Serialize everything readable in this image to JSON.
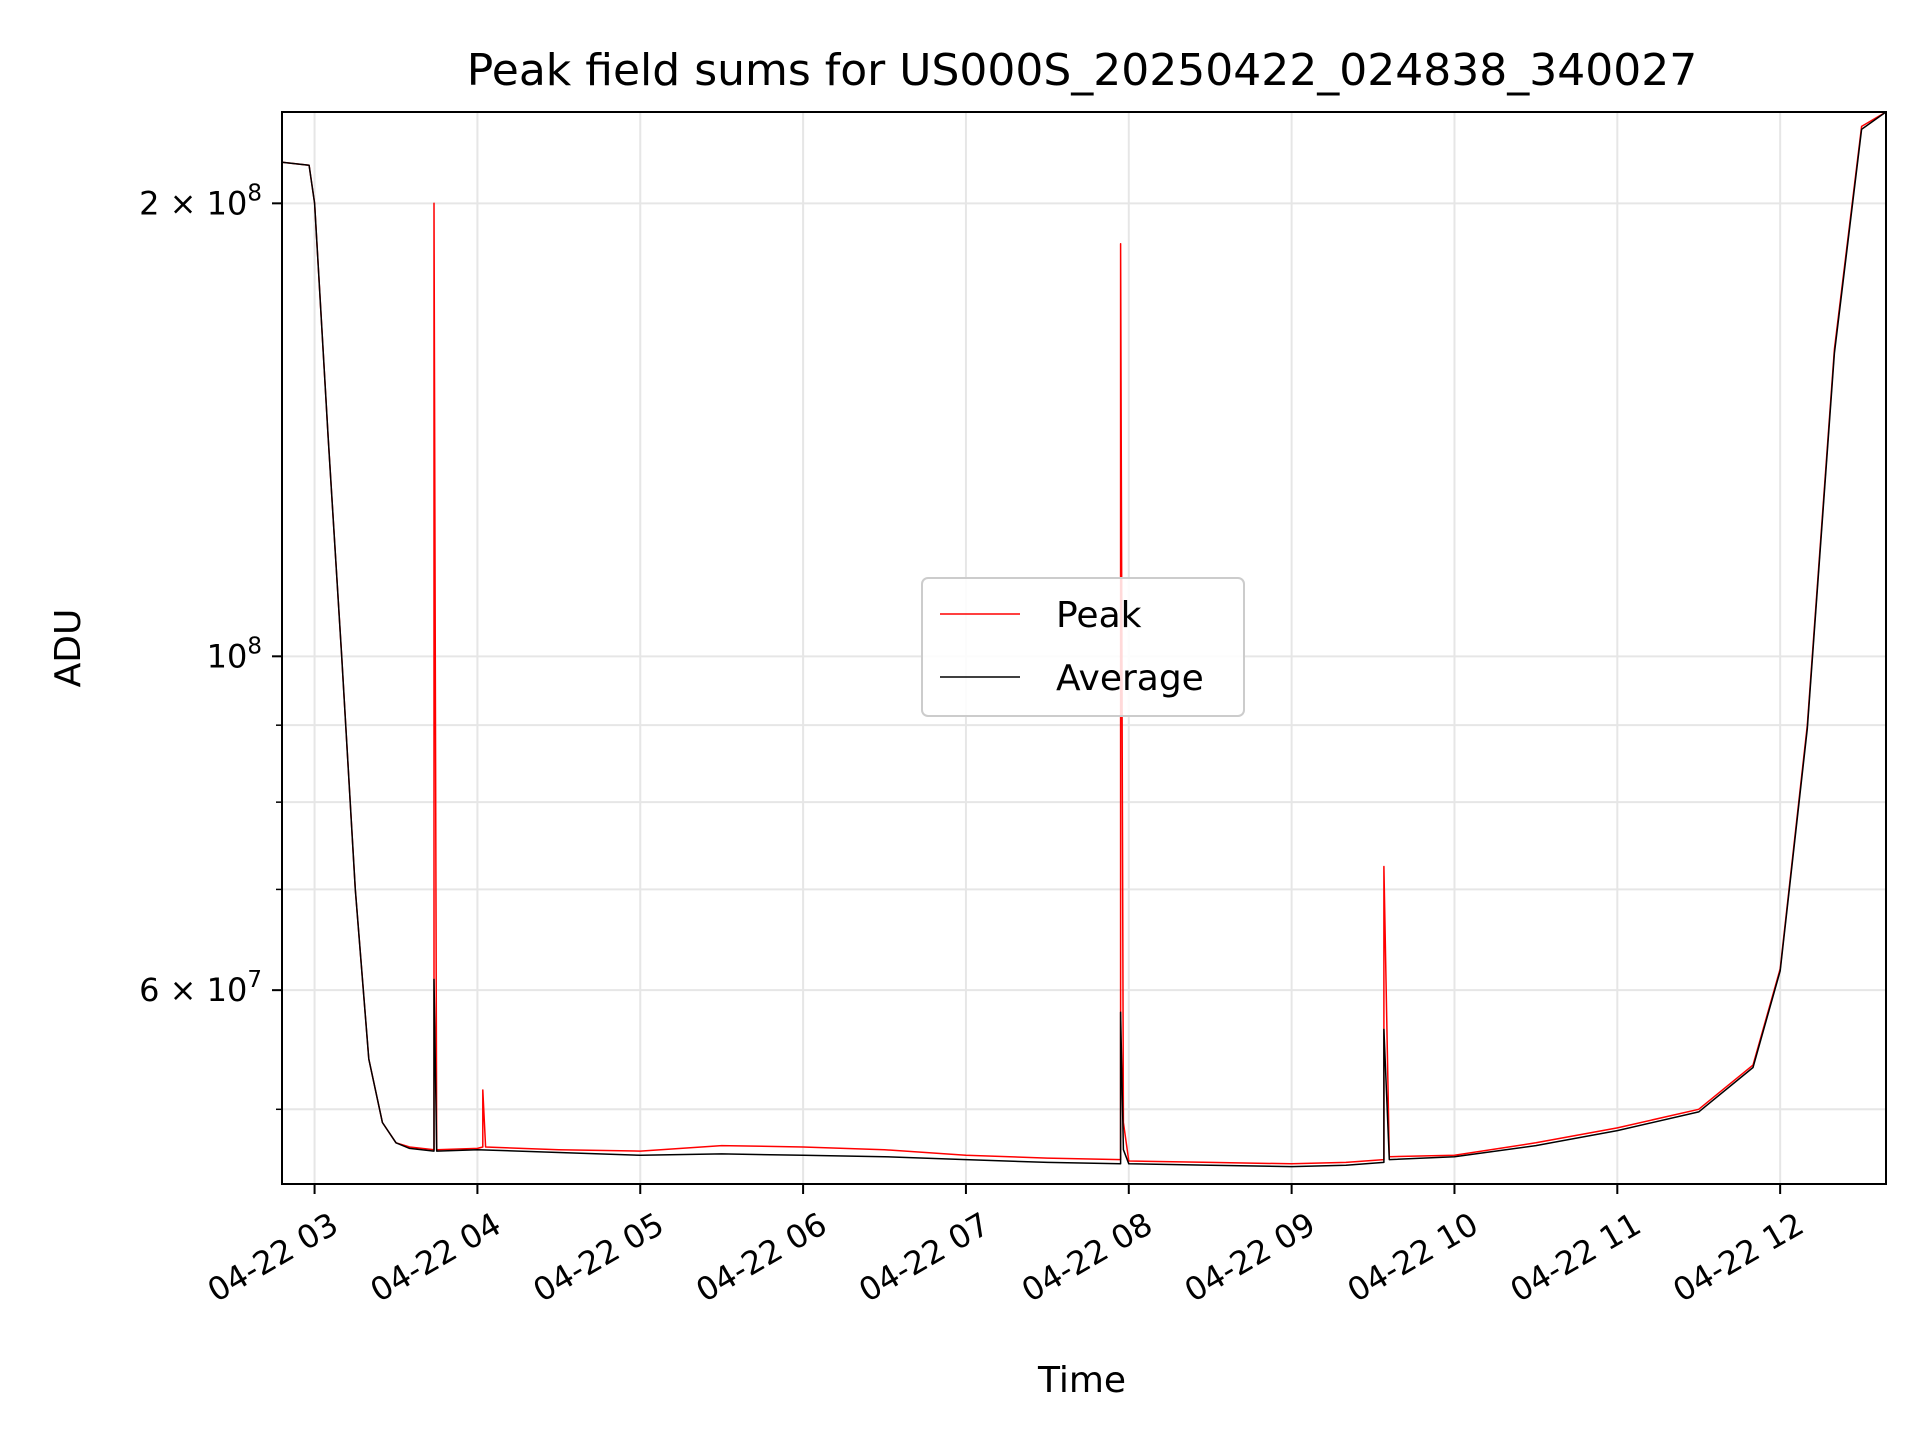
{
  "chart_data": {
    "type": "line",
    "title": "Peak field sums for US000S_20250422_024838_340027",
    "xlabel": "Time",
    "ylabel": "ADU",
    "y_scale": "log",
    "xlim": [
      "2025-04-22 02:48",
      "2025-04-22 12:39"
    ],
    "ylim": [
      44600000,
      230000000
    ],
    "grid": true,
    "legend_placement": "center",
    "x_ticks": [
      {
        "x": "2025-04-22 03:00",
        "label": "04-22 03"
      },
      {
        "x": "2025-04-22 04:00",
        "label": "04-22 04"
      },
      {
        "x": "2025-04-22 05:00",
        "label": "04-22 05"
      },
      {
        "x": "2025-04-22 06:00",
        "label": "04-22 06"
      },
      {
        "x": "2025-04-22 07:00",
        "label": "04-22 07"
      },
      {
        "x": "2025-04-22 08:00",
        "label": "04-22 08"
      },
      {
        "x": "2025-04-22 09:00",
        "label": "04-22 09"
      },
      {
        "x": "2025-04-22 10:00",
        "label": "04-22 10"
      },
      {
        "x": "2025-04-22 11:00",
        "label": "04-22 11"
      },
      {
        "x": "2025-04-22 12:00",
        "label": "04-22 12"
      }
    ],
    "y_ticks": [
      {
        "value": 200000000,
        "base": "2 × 10",
        "exp": "8"
      },
      {
        "value": 100000000,
        "base": "10",
        "exp": "8"
      },
      {
        "value": 60000000,
        "base": "6 × 10",
        "exp": "7"
      }
    ],
    "y_minor_ticks": [
      50000000,
      70000000,
      80000000,
      90000000
    ],
    "series": [
      {
        "name": "Peak",
        "color": "#ff0000",
        "points": [
          [
            "2025-04-22 02:48",
            213000000
          ],
          [
            "2025-04-22 02:58",
            212000000
          ],
          [
            "2025-04-22 03:00",
            200000000
          ],
          [
            "2025-04-22 03:05",
            140000000
          ],
          [
            "2025-04-22 03:10",
            100000000
          ],
          [
            "2025-04-22 03:15",
            70000000
          ],
          [
            "2025-04-22 03:20",
            54000000
          ],
          [
            "2025-04-22 03:25",
            49000000
          ],
          [
            "2025-04-22 03:30",
            47500000
          ],
          [
            "2025-04-22 03:35",
            47200000
          ],
          [
            "2025-04-22 03:44",
            47000000
          ],
          [
            "2025-04-22 03:44",
            200000000
          ],
          [
            "2025-04-22 03:45",
            47000000
          ],
          [
            "2025-04-22 04:00",
            47100000
          ],
          [
            "2025-04-22 04:02",
            47200000
          ],
          [
            "2025-04-22 04:02",
            51500000
          ],
          [
            "2025-04-22 04:03",
            47200000
          ],
          [
            "2025-04-22 04:30",
            47000000
          ],
          [
            "2025-04-22 05:00",
            46900000
          ],
          [
            "2025-04-22 05:30",
            47300000
          ],
          [
            "2025-04-22 06:00",
            47200000
          ],
          [
            "2025-04-22 06:30",
            47000000
          ],
          [
            "2025-04-22 07:00",
            46600000
          ],
          [
            "2025-04-22 07:30",
            46400000
          ],
          [
            "2025-04-22 07:57",
            46300000
          ],
          [
            "2025-04-22 07:57",
            188000000
          ],
          [
            "2025-04-22 07:58",
            49000000
          ],
          [
            "2025-04-22 08:00",
            46200000
          ],
          [
            "2025-04-22 08:30",
            46100000
          ],
          [
            "2025-04-22 09:00",
            46000000
          ],
          [
            "2025-04-22 09:20",
            46100000
          ],
          [
            "2025-04-22 09:34",
            46300000
          ],
          [
            "2025-04-22 09:34",
            72500000
          ],
          [
            "2025-04-22 09:36",
            46500000
          ],
          [
            "2025-04-22 10:00",
            46600000
          ],
          [
            "2025-04-22 10:30",
            47500000
          ],
          [
            "2025-04-22 11:00",
            48600000
          ],
          [
            "2025-04-22 11:30",
            50000000
          ],
          [
            "2025-04-22 11:50",
            53500000
          ],
          [
            "2025-04-22 12:00",
            62000000
          ],
          [
            "2025-04-22 12:10",
            90000000
          ],
          [
            "2025-04-22 12:20",
            160000000
          ],
          [
            "2025-04-22 12:30",
            225000000
          ],
          [
            "2025-04-22 12:39",
            230000000
          ]
        ]
      },
      {
        "name": "Average",
        "color": "#000000",
        "points": [
          [
            "2025-04-22 02:48",
            213000000
          ],
          [
            "2025-04-22 02:58",
            212000000
          ],
          [
            "2025-04-22 03:00",
            200000000
          ],
          [
            "2025-04-22 03:05",
            140000000
          ],
          [
            "2025-04-22 03:10",
            100000000
          ],
          [
            "2025-04-22 03:15",
            70000000
          ],
          [
            "2025-04-22 03:20",
            54000000
          ],
          [
            "2025-04-22 03:25",
            49000000
          ],
          [
            "2025-04-22 03:30",
            47500000
          ],
          [
            "2025-04-22 03:35",
            47100000
          ],
          [
            "2025-04-22 03:44",
            46900000
          ],
          [
            "2025-04-22 03:44",
            61000000
          ],
          [
            "2025-04-22 03:45",
            46900000
          ],
          [
            "2025-04-22 04:00",
            47000000
          ],
          [
            "2025-04-22 04:30",
            46800000
          ],
          [
            "2025-04-22 05:00",
            46600000
          ],
          [
            "2025-04-22 05:30",
            46700000
          ],
          [
            "2025-04-22 06:00",
            46600000
          ],
          [
            "2025-04-22 06:30",
            46500000
          ],
          [
            "2025-04-22 07:00",
            46300000
          ],
          [
            "2025-04-22 07:30",
            46100000
          ],
          [
            "2025-04-22 07:57",
            46000000
          ],
          [
            "2025-04-22 07:57",
            58000000
          ],
          [
            "2025-04-22 07:58",
            47000000
          ],
          [
            "2025-04-22 08:00",
            46000000
          ],
          [
            "2025-04-22 08:30",
            45900000
          ],
          [
            "2025-04-22 09:00",
            45800000
          ],
          [
            "2025-04-22 09:20",
            45900000
          ],
          [
            "2025-04-22 09:34",
            46100000
          ],
          [
            "2025-04-22 09:34",
            56500000
          ],
          [
            "2025-04-22 09:36",
            46300000
          ],
          [
            "2025-04-22 10:00",
            46500000
          ],
          [
            "2025-04-22 10:30",
            47300000
          ],
          [
            "2025-04-22 11:00",
            48400000
          ],
          [
            "2025-04-22 11:30",
            49800000
          ],
          [
            "2025-04-22 11:50",
            53300000
          ],
          [
            "2025-04-22 12:00",
            61800000
          ],
          [
            "2025-04-22 12:10",
            89500000
          ],
          [
            "2025-04-22 12:20",
            159000000
          ],
          [
            "2025-04-22 12:30",
            224000000
          ],
          [
            "2025-04-22 12:39",
            230000000
          ]
        ]
      }
    ]
  }
}
